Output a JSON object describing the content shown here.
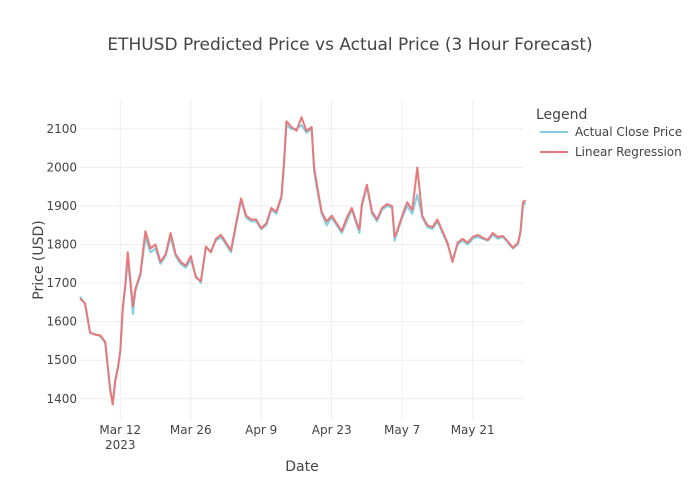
{
  "chart_data": {
    "type": "line",
    "title": "ETHUSD Predicted Price vs Actual Price (3 Hour Forecast)",
    "xlabel": "Date",
    "ylabel": "Price (USD)",
    "xlim": [
      "2023-03-04",
      "2023-05-31"
    ],
    "ylim": [
      1345,
      2175
    ],
    "grid": true,
    "legend": {
      "title": "Legend",
      "placement": "top-right"
    },
    "x_ticks": [
      {
        "date": "2023-03-12",
        "label": "Mar 12",
        "sublabel": "2023"
      },
      {
        "date": "2023-03-26",
        "label": "Mar 26"
      },
      {
        "date": "2023-04-09",
        "label": "Apr 9"
      },
      {
        "date": "2023-04-23",
        "label": "Apr 23"
      },
      {
        "date": "2023-05-07",
        "label": "May 7"
      },
      {
        "date": "2023-05-21",
        "label": "May 21"
      }
    ],
    "y_ticks": [
      1400,
      1500,
      1600,
      1700,
      1800,
      1900,
      2000,
      2100
    ],
    "series": [
      {
        "name": "Actual Close Price",
        "color": "#83d0e0",
        "points": [
          [
            "2023-03-04",
            1665
          ],
          [
            "2023-03-05",
            1645
          ],
          [
            "2023-03-06",
            1570
          ],
          [
            "2023-03-07",
            1568
          ],
          [
            "2023-03-08",
            1562
          ],
          [
            "2023-03-09",
            1545
          ],
          [
            "2023-03-10",
            1420
          ],
          [
            "2023-03-10T12:00",
            1390
          ],
          [
            "2023-03-11",
            1450
          ],
          [
            "2023-03-11T12:00",
            1480
          ],
          [
            "2023-03-12",
            1520
          ],
          [
            "2023-03-12T12:00",
            1630
          ],
          [
            "2023-03-13",
            1690
          ],
          [
            "2023-03-13T12:00",
            1760
          ],
          [
            "2023-03-14",
            1700
          ],
          [
            "2023-03-14T12:00",
            1620
          ],
          [
            "2023-03-15",
            1680
          ],
          [
            "2023-03-16",
            1720
          ],
          [
            "2023-03-17",
            1820
          ],
          [
            "2023-03-18",
            1780
          ],
          [
            "2023-03-19",
            1790
          ],
          [
            "2023-03-20",
            1750
          ],
          [
            "2023-03-21",
            1770
          ],
          [
            "2023-03-22",
            1820
          ],
          [
            "2023-03-23",
            1770
          ],
          [
            "2023-03-24",
            1750
          ],
          [
            "2023-03-25",
            1740
          ],
          [
            "2023-03-26",
            1760
          ],
          [
            "2023-03-27",
            1720
          ],
          [
            "2023-03-28",
            1700
          ],
          [
            "2023-03-29",
            1790
          ],
          [
            "2023-03-30",
            1785
          ],
          [
            "2023-03-31",
            1810
          ],
          [
            "2023-04-01",
            1820
          ],
          [
            "2023-04-02",
            1800
          ],
          [
            "2023-04-03",
            1780
          ],
          [
            "2023-04-04",
            1850
          ],
          [
            "2023-04-05",
            1915
          ],
          [
            "2023-04-06",
            1870
          ],
          [
            "2023-04-07",
            1860
          ],
          [
            "2023-04-08",
            1860
          ],
          [
            "2023-04-09",
            1840
          ],
          [
            "2023-04-10",
            1850
          ],
          [
            "2023-04-11",
            1890
          ],
          [
            "2023-04-12",
            1880
          ],
          [
            "2023-04-13",
            1920
          ],
          [
            "2023-04-13T12:00",
            2000
          ],
          [
            "2023-04-14",
            2110
          ],
          [
            "2023-04-15",
            2100
          ],
          [
            "2023-04-16",
            2100
          ],
          [
            "2023-04-17",
            2110
          ],
          [
            "2023-04-18",
            2090
          ],
          [
            "2023-04-19",
            2100
          ],
          [
            "2023-04-19T12:00",
            1990
          ],
          [
            "2023-04-20",
            1950
          ],
          [
            "2023-04-21",
            1880
          ],
          [
            "2023-04-22",
            1850
          ],
          [
            "2023-04-23",
            1870
          ],
          [
            "2023-04-24",
            1850
          ],
          [
            "2023-04-25",
            1830
          ],
          [
            "2023-04-26",
            1860
          ],
          [
            "2023-04-27",
            1890
          ],
          [
            "2023-04-28",
            1850
          ],
          [
            "2023-04-28T12:00",
            1830
          ],
          [
            "2023-04-29",
            1900
          ],
          [
            "2023-04-30",
            1950
          ],
          [
            "2023-05-01",
            1880
          ],
          [
            "2023-05-02",
            1860
          ],
          [
            "2023-05-03",
            1890
          ],
          [
            "2023-05-04",
            1900
          ],
          [
            "2023-05-05",
            1895
          ],
          [
            "2023-05-05T12:00",
            1810
          ],
          [
            "2023-05-06",
            1830
          ],
          [
            "2023-05-07",
            1870
          ],
          [
            "2023-05-08",
            1900
          ],
          [
            "2023-05-09",
            1880
          ],
          [
            "2023-05-10",
            1930
          ],
          [
            "2023-05-11",
            1870
          ],
          [
            "2023-05-12",
            1845
          ],
          [
            "2023-05-13",
            1840
          ],
          [
            "2023-05-14",
            1860
          ],
          [
            "2023-05-15",
            1830
          ],
          [
            "2023-05-16",
            1800
          ],
          [
            "2023-05-17",
            1760
          ],
          [
            "2023-05-18",
            1800
          ],
          [
            "2023-05-19",
            1810
          ],
          [
            "2023-05-20",
            1800
          ],
          [
            "2023-05-21",
            1815
          ],
          [
            "2023-05-22",
            1820
          ],
          [
            "2023-05-23",
            1815
          ],
          [
            "2023-05-24",
            1810
          ],
          [
            "2023-05-25",
            1825
          ],
          [
            "2023-05-26",
            1815
          ],
          [
            "2023-05-27",
            1820
          ],
          [
            "2023-05-28",
            1805
          ],
          [
            "2023-05-29",
            1790
          ],
          [
            "2023-05-30",
            1800
          ],
          [
            "2023-05-30T12:00",
            1830
          ],
          [
            "2023-05-31",
            1900
          ],
          [
            "2023-05-31T12:00",
            1910
          ]
        ]
      },
      {
        "name": "Linear Regression",
        "color": "#e8787a",
        "points": [
          [
            "2023-03-04",
            1660
          ],
          [
            "2023-03-05",
            1648
          ],
          [
            "2023-03-06",
            1572
          ],
          [
            "2023-03-07",
            1566
          ],
          [
            "2023-03-08",
            1565
          ],
          [
            "2023-03-09",
            1548
          ],
          [
            "2023-03-10",
            1425
          ],
          [
            "2023-03-10T12:00",
            1385
          ],
          [
            "2023-03-11",
            1445
          ],
          [
            "2023-03-11T12:00",
            1478
          ],
          [
            "2023-03-12",
            1525
          ],
          [
            "2023-03-12T12:00",
            1640
          ],
          [
            "2023-03-13",
            1695
          ],
          [
            "2023-03-13T12:00",
            1780
          ],
          [
            "2023-03-14",
            1710
          ],
          [
            "2023-03-14T12:00",
            1640
          ],
          [
            "2023-03-15",
            1685
          ],
          [
            "2023-03-16",
            1725
          ],
          [
            "2023-03-17",
            1835
          ],
          [
            "2023-03-18",
            1790
          ],
          [
            "2023-03-19",
            1800
          ],
          [
            "2023-03-20",
            1755
          ],
          [
            "2023-03-21",
            1775
          ],
          [
            "2023-03-22",
            1830
          ],
          [
            "2023-03-23",
            1775
          ],
          [
            "2023-03-24",
            1755
          ],
          [
            "2023-03-25",
            1745
          ],
          [
            "2023-03-26",
            1770
          ],
          [
            "2023-03-27",
            1715
          ],
          [
            "2023-03-28",
            1705
          ],
          [
            "2023-03-29",
            1795
          ],
          [
            "2023-03-30",
            1780
          ],
          [
            "2023-03-31",
            1815
          ],
          [
            "2023-04-01",
            1825
          ],
          [
            "2023-04-02",
            1805
          ],
          [
            "2023-04-03",
            1785
          ],
          [
            "2023-04-04",
            1855
          ],
          [
            "2023-04-05",
            1920
          ],
          [
            "2023-04-06",
            1875
          ],
          [
            "2023-04-07",
            1865
          ],
          [
            "2023-04-08",
            1865
          ],
          [
            "2023-04-09",
            1842
          ],
          [
            "2023-04-10",
            1855
          ],
          [
            "2023-04-11",
            1895
          ],
          [
            "2023-04-12",
            1885
          ],
          [
            "2023-04-13",
            1925
          ],
          [
            "2023-04-13T12:00",
            2010
          ],
          [
            "2023-04-14",
            2120
          ],
          [
            "2023-04-15",
            2105
          ],
          [
            "2023-04-16",
            2095
          ],
          [
            "2023-04-17",
            2130
          ],
          [
            "2023-04-18",
            2095
          ],
          [
            "2023-04-19",
            2105
          ],
          [
            "2023-04-19T12:00",
            2000
          ],
          [
            "2023-04-20",
            1960
          ],
          [
            "2023-04-21",
            1885
          ],
          [
            "2023-04-22",
            1860
          ],
          [
            "2023-04-23",
            1875
          ],
          [
            "2023-04-24",
            1855
          ],
          [
            "2023-04-25",
            1835
          ],
          [
            "2023-04-26",
            1870
          ],
          [
            "2023-04-27",
            1895
          ],
          [
            "2023-04-28",
            1855
          ],
          [
            "2023-04-28T12:00",
            1840
          ],
          [
            "2023-04-29",
            1905
          ],
          [
            "2023-04-30",
            1955
          ],
          [
            "2023-05-01",
            1885
          ],
          [
            "2023-05-02",
            1865
          ],
          [
            "2023-05-03",
            1895
          ],
          [
            "2023-05-04",
            1905
          ],
          [
            "2023-05-05",
            1900
          ],
          [
            "2023-05-05T12:00",
            1820
          ],
          [
            "2023-05-06",
            1835
          ],
          [
            "2023-05-07",
            1875
          ],
          [
            "2023-05-08",
            1910
          ],
          [
            "2023-05-09",
            1890
          ],
          [
            "2023-05-10",
            2000
          ],
          [
            "2023-05-11",
            1875
          ],
          [
            "2023-05-12",
            1850
          ],
          [
            "2023-05-13",
            1845
          ],
          [
            "2023-05-14",
            1865
          ],
          [
            "2023-05-15",
            1835
          ],
          [
            "2023-05-16",
            1805
          ],
          [
            "2023-05-17",
            1755
          ],
          [
            "2023-05-18",
            1805
          ],
          [
            "2023-05-19",
            1815
          ],
          [
            "2023-05-20",
            1805
          ],
          [
            "2023-05-21",
            1820
          ],
          [
            "2023-05-22",
            1825
          ],
          [
            "2023-05-23",
            1818
          ],
          [
            "2023-05-24",
            1812
          ],
          [
            "2023-05-25",
            1830
          ],
          [
            "2023-05-26",
            1820
          ],
          [
            "2023-05-27",
            1822
          ],
          [
            "2023-05-28",
            1808
          ],
          [
            "2023-05-29",
            1792
          ],
          [
            "2023-05-30",
            1805
          ],
          [
            "2023-05-30T12:00",
            1835
          ],
          [
            "2023-05-31",
            1910
          ],
          [
            "2023-05-31T12:00",
            1915
          ]
        ]
      }
    ]
  }
}
